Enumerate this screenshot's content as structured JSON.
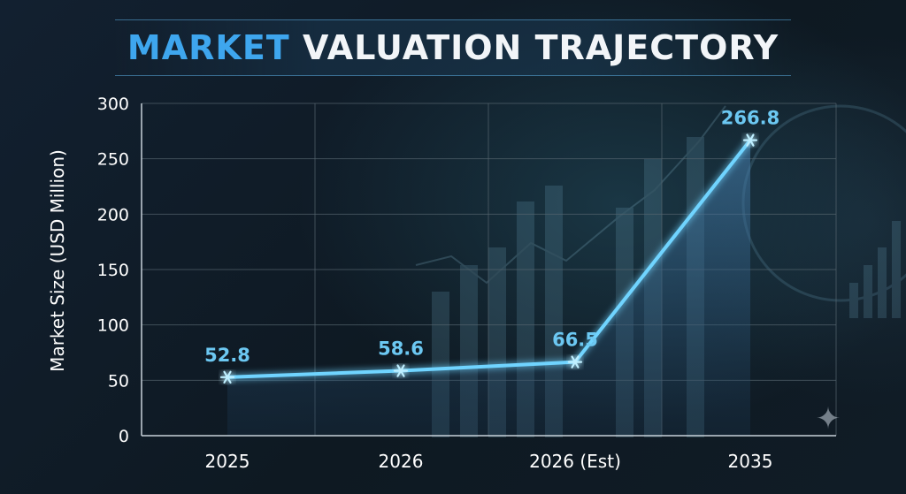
{
  "title": {
    "accent": "MARKET",
    "rest": "VALUATION TRAJECTORY"
  },
  "colors": {
    "background": "#0f1a24",
    "accent": "#3ea6ee",
    "line": "#6fd4ff",
    "data_label": "#6cc8f2",
    "grid": "#55646e"
  },
  "decoration_icon": "sparkle-icon",
  "chart_data": {
    "type": "line",
    "title": "MARKET VALUATION TRAJECTORY",
    "xlabel": "",
    "ylabel": "Market Size (USD Million)",
    "categories": [
      "2025",
      "2026",
      "2026 (Est)",
      "2035"
    ],
    "series": [
      {
        "values": [
          52.8,
          58.6,
          66.5,
          266.8
        ],
        "labels": [
          "52.8",
          "58.6",
          "66.5",
          "266.8"
        ]
      }
    ],
    "ylim": [
      0,
      300
    ],
    "yticks": [
      0,
      50,
      100,
      150,
      200,
      250,
      300
    ],
    "grid": true,
    "marker": "asterisk",
    "area_fill": true,
    "legend": "none"
  }
}
